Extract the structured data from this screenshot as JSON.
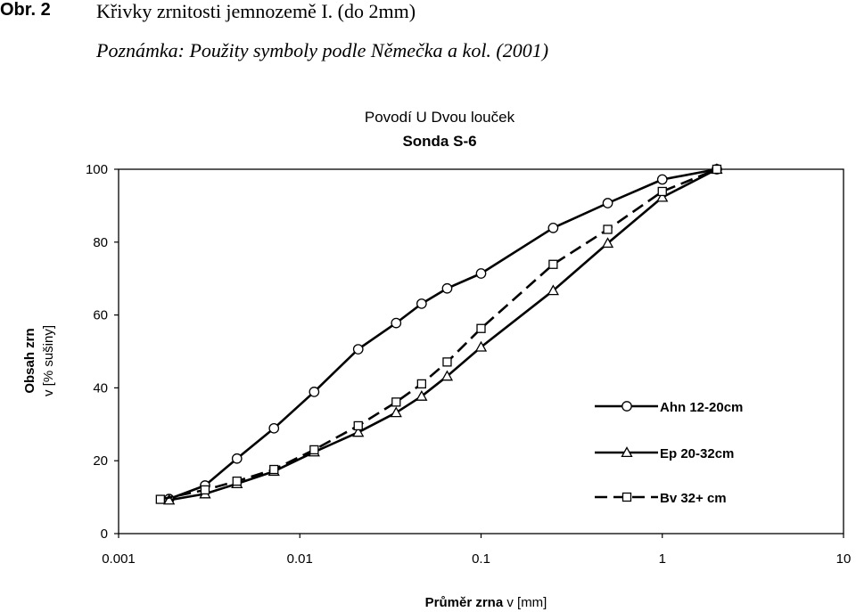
{
  "caption": {
    "label": "Obr. 2",
    "title": "Křivky zrnitosti jemnozemě I. (do 2mm)",
    "note": "Poznámka: Použity symboly podle Němečka a kol. (2001)"
  },
  "chart_data": {
    "type": "line",
    "title": "Povodí U Dvou louček",
    "subtitle": "Sonda S-6",
    "xlabel_bold": "Průměr zrna",
    "xlabel_rest": " v [mm]",
    "ylabel_bold": "Obsah zrn",
    "ylabel_rest": "v [% sušiny]",
    "x_scale": "log",
    "xlim": [
      0.001,
      10
    ],
    "ylim": [
      0,
      100
    ],
    "x_ticks": [
      0.001,
      0.01,
      0.1,
      1,
      10
    ],
    "x_tick_labels": [
      "0.001",
      "0.01",
      "0.1",
      "1",
      "10"
    ],
    "y_ticks": [
      0,
      20,
      40,
      60,
      80,
      100
    ],
    "y_tick_labels": [
      "0",
      "20",
      "40",
      "60",
      "80",
      "100"
    ],
    "grid": false,
    "legend_position": "lower-right",
    "series": [
      {
        "name": "Ahn 12-20cm",
        "marker": "circle",
        "dash": "solid",
        "x": [
          0.0019,
          0.003,
          0.0045,
          0.0072,
          0.012,
          0.021,
          0.034,
          0.047,
          0.065,
          0.1,
          0.25,
          0.5,
          1.0,
          2.0
        ],
        "y": [
          9.5,
          13.2,
          20.6,
          28.9,
          38.9,
          50.6,
          57.8,
          63.1,
          67.3,
          71.4,
          83.9,
          90.7,
          97.2,
          100
        ]
      },
      {
        "name": "Ep 20-32cm",
        "marker": "triangle",
        "dash": "solid",
        "x": [
          0.0019,
          0.003,
          0.0045,
          0.0072,
          0.012,
          0.021,
          0.034,
          0.047,
          0.065,
          0.1,
          0.25,
          0.5,
          1.0,
          2.0
        ],
        "y": [
          9.2,
          10.9,
          13.7,
          17.1,
          22.4,
          27.8,
          33.2,
          37.7,
          43.2,
          51.2,
          66.7,
          79.7,
          92.3,
          100
        ]
      },
      {
        "name": "Bv 32+ cm",
        "marker": "square",
        "dash": "dashed",
        "x": [
          0.0017,
          0.003,
          0.0045,
          0.0072,
          0.012,
          0.021,
          0.034,
          0.047,
          0.065,
          0.1,
          0.25,
          0.5,
          1.0,
          2.0
        ],
        "y": [
          9.4,
          12.0,
          14.4,
          17.6,
          23.0,
          29.6,
          36.1,
          41.1,
          47.1,
          56.3,
          73.9,
          83.5,
          93.9,
          100
        ]
      }
    ]
  }
}
